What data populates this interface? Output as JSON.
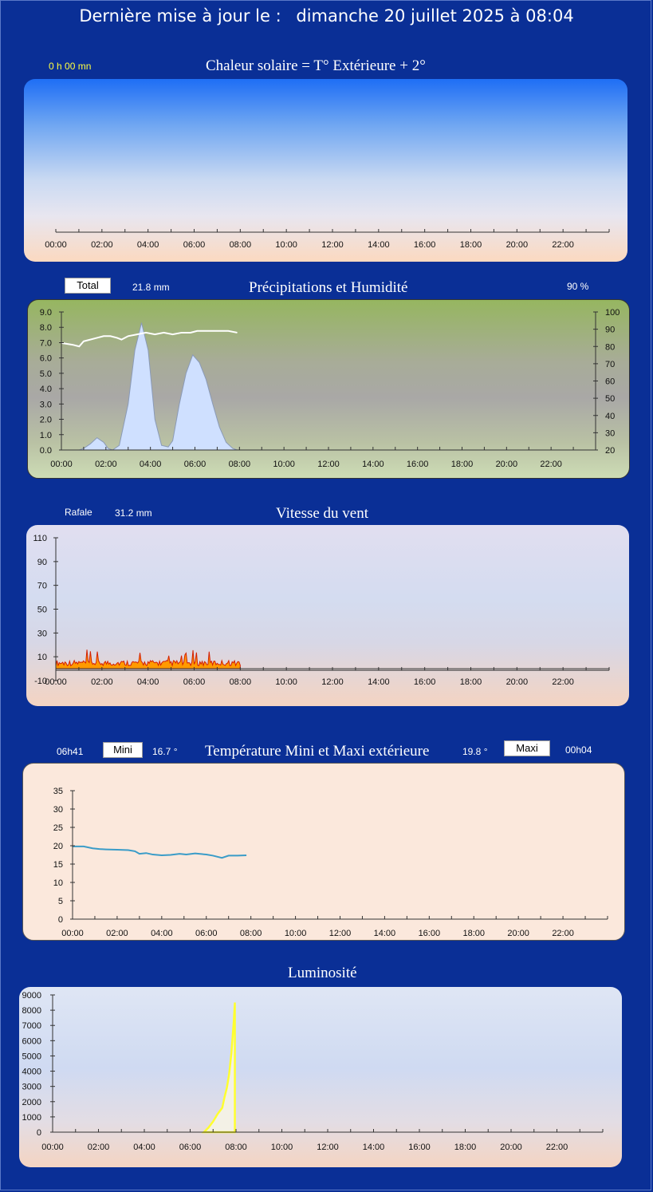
{
  "header": {
    "label": "Dernière mise à jour le :",
    "date": "dimanche 20 juillet 2025 à 08:04"
  },
  "hours": [
    "00:00",
    "02:00",
    "04:00",
    "06:00",
    "08:00",
    "10:00",
    "12:00",
    "14:00",
    "16:00",
    "18:00",
    "20:00",
    "22:00"
  ],
  "colors": {
    "background": "#0a2f96",
    "humidity_line": "#ffffff",
    "rain_fill": "#cfe0ff",
    "wind_fill": "#ff9a00",
    "wind_edge": "#d42000",
    "temp_line": "#3a9cc8",
    "lum_fill": "#ffff30"
  },
  "solar": {
    "title": "Chaleur solaire = T° Extérieure + 2°",
    "duration": "0 h 00 mn"
  },
  "rain": {
    "title": "Précipitations et Humidité",
    "total_label": "Total",
    "total_value": "21.8 mm",
    "humidity_value": "90 %"
  },
  "wind": {
    "title": "Vitesse du vent",
    "gust_label": "Rafale",
    "gust_value": "31.2 mm"
  },
  "temp": {
    "title": "Température Mini et Maxi extérieure",
    "min_time": "06h41",
    "min_label": "Mini",
    "min_value": "16.7 °",
    "max_value": "19.8 °",
    "max_label": "Maxi",
    "max_time": "00h04"
  },
  "lum": {
    "title": "Luminosité"
  },
  "chart_data": [
    {
      "type": "area",
      "title": "Chaleur solaire = T° Extérieure + 2°",
      "x_range": [
        "00:00",
        "24:00"
      ],
      "series": []
    },
    {
      "type": "area",
      "title": "Précipitations et Humidité",
      "ylim": [
        0,
        9
      ],
      "y2lim": [
        20,
        100
      ],
      "y_ticks": [
        "0.0",
        "1.0",
        "2.0",
        "3.0",
        "4.0",
        "5.0",
        "6.0",
        "7.0",
        "8.0",
        "9.0"
      ],
      "y2_ticks": [
        "20",
        "30",
        "40",
        "50",
        "60",
        "70",
        "80",
        "90",
        "100"
      ],
      "rain_x": [
        0,
        0.5,
        0.8,
        1.0,
        1.3,
        1.6,
        1.9,
        2.1,
        2.3,
        2.6,
        3.0,
        3.3,
        3.6,
        3.9,
        4.2,
        4.5,
        4.8,
        5.0,
        5.3,
        5.6,
        5.9,
        6.2,
        6.5,
        6.8,
        7.1,
        7.4,
        7.7,
        7.9
      ],
      "rain_y": [
        0,
        0,
        0,
        0.1,
        0.4,
        0.8,
        0.5,
        0.1,
        0,
        0.3,
        3.0,
        6.5,
        8.3,
        6.5,
        2.0,
        0.3,
        0.2,
        0.6,
        3.0,
        5.0,
        6.2,
        5.7,
        4.6,
        3.0,
        1.5,
        0.5,
        0.1,
        0
      ],
      "humidity_x": [
        0,
        0.5,
        0.8,
        1.0,
        1.3,
        1.6,
        1.9,
        2.2,
        2.5,
        2.7,
        3.0,
        3.4,
        3.8,
        4.2,
        4.6,
        5.0,
        5.4,
        5.8,
        6.1,
        6.5,
        7.0,
        7.5,
        7.9
      ],
      "humidity_y": [
        82,
        81,
        80,
        83,
        84,
        85,
        86,
        86,
        85,
        84,
        86,
        87,
        88,
        87,
        88,
        87,
        88,
        88,
        89,
        89,
        89,
        89,
        88
      ]
    },
    {
      "type": "area",
      "title": "Vitesse du vent",
      "ylim": [
        -10,
        110
      ],
      "y_ticks": [
        "-10",
        "10",
        "30",
        "50",
        "70",
        "90",
        "110"
      ],
      "x_end": 8.0,
      "typical": 4,
      "max": 16
    },
    {
      "type": "line",
      "title": "Température Mini et Maxi extérieure",
      "ylim": [
        0,
        35
      ],
      "y_ticks": [
        "0",
        "5",
        "10",
        "15",
        "20",
        "25",
        "30",
        "35"
      ],
      "x": [
        0,
        0.5,
        0.9,
        1.2,
        1.5,
        2.0,
        2.5,
        2.8,
        3.0,
        3.3,
        3.6,
        4.0,
        4.4,
        4.8,
        5.1,
        5.5,
        6.0,
        6.3,
        6.7,
        7.0,
        7.4,
        7.8
      ],
      "y": [
        19.8,
        19.8,
        19.3,
        19.1,
        19.0,
        18.9,
        18.8,
        18.5,
        17.8,
        18.0,
        17.6,
        17.4,
        17.5,
        17.8,
        17.6,
        17.9,
        17.6,
        17.3,
        16.7,
        17.3,
        17.3,
        17.4
      ]
    },
    {
      "type": "area",
      "title": "Luminosité",
      "ylim": [
        0,
        9000
      ],
      "y_ticks": [
        "0",
        "1000",
        "2000",
        "3000",
        "4000",
        "5000",
        "6000",
        "7000",
        "8000",
        "9000"
      ],
      "x": [
        6.6,
        6.8,
        7.0,
        7.2,
        7.4,
        7.5,
        7.6,
        7.7,
        7.8,
        7.9,
        7.95
      ],
      "y": [
        0,
        300,
        700,
        1200,
        1600,
        2300,
        2900,
        3800,
        5200,
        7200,
        8500
      ]
    }
  ]
}
